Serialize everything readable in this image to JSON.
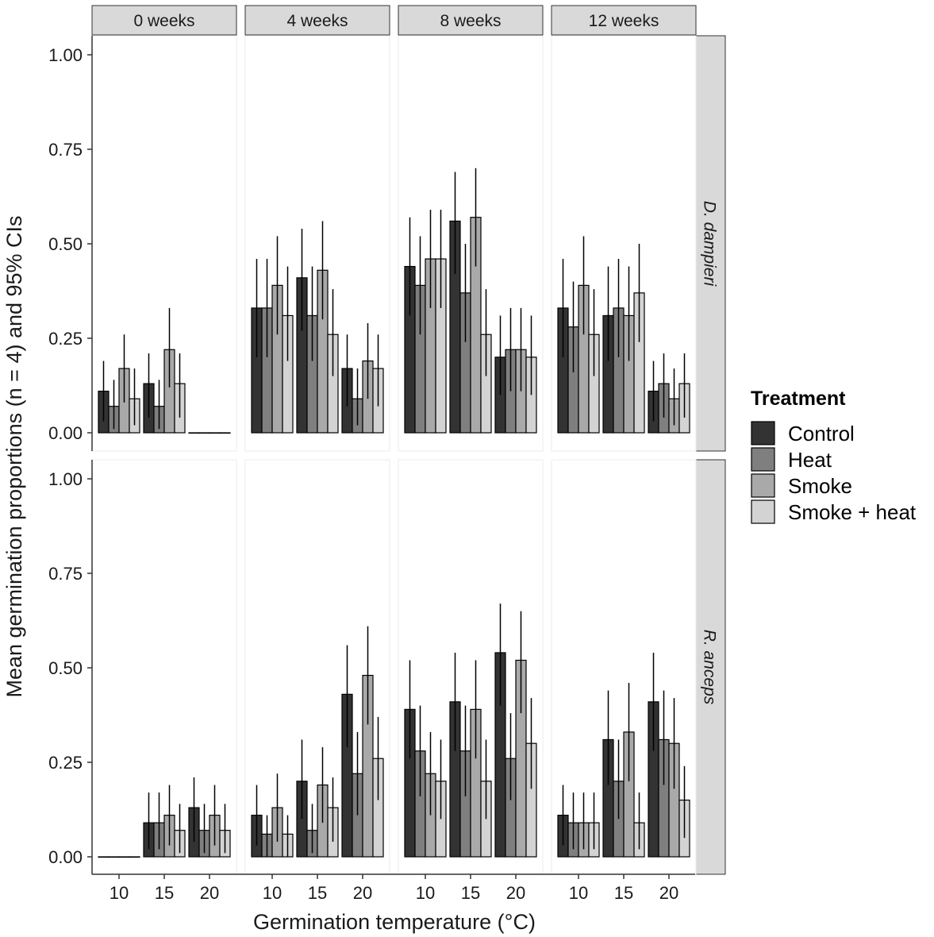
{
  "chart_data": {
    "type": "bar",
    "facet_columns": [
      "0 weeks",
      "4 weeks",
      "8 weeks",
      "12 weeks"
    ],
    "facet_rows": [
      "D. dampieri",
      "R. anceps"
    ],
    "x_categories": [
      "10",
      "15",
      "20"
    ],
    "xlabel": "Germination temperature (°C)",
    "ylabel": "Mean germination proportions (n = 4) and 95% CIs",
    "ylim": [
      0,
      1
    ],
    "y_ticks": [
      "0.00",
      "0.25",
      "0.50",
      "0.75",
      "1.00"
    ],
    "grid": false,
    "legend": {
      "title": "Treatment",
      "placement": "right",
      "entries": [
        {
          "name": "Control",
          "color": "#333333"
        },
        {
          "name": "Heat",
          "color": "#7f7f7f"
        },
        {
          "name": "Smoke",
          "color": "#a9a9a9"
        },
        {
          "name": "Smoke + heat",
          "color": "#d3d3d3"
        }
      ]
    },
    "panels": [
      {
        "row": "D. dampieri",
        "column": "0 weeks",
        "values": [
          [
            0.11,
            0.07,
            0.17,
            0.09
          ],
          [
            0.13,
            0.07,
            0.22,
            0.13
          ],
          [
            0,
            0,
            0,
            0
          ]
        ],
        "ci_low": [
          [
            0.03,
            0.01,
            0.08,
            0.02
          ],
          [
            0.04,
            0.01,
            0.12,
            0.04
          ],
          [
            0,
            0,
            0,
            0
          ]
        ],
        "ci_high": [
          [
            0.19,
            0.14,
            0.26,
            0.17
          ],
          [
            0.21,
            0.14,
            0.33,
            0.21
          ],
          [
            0,
            0,
            0,
            0
          ]
        ]
      },
      {
        "row": "D. dampieri",
        "column": "4 weeks",
        "values": [
          [
            0.33,
            0.33,
            0.39,
            0.31
          ],
          [
            0.41,
            0.31,
            0.43,
            0.26
          ],
          [
            0.17,
            0.09,
            0.19,
            0.17
          ]
        ],
        "ci_low": [
          [
            0.2,
            0.2,
            0.26,
            0.19
          ],
          [
            0.27,
            0.19,
            0.3,
            0.15
          ],
          [
            0.07,
            0.02,
            0.09,
            0.07
          ]
        ],
        "ci_high": [
          [
            0.46,
            0.46,
            0.52,
            0.44
          ],
          [
            0.54,
            0.44,
            0.56,
            0.38
          ],
          [
            0.26,
            0.17,
            0.29,
            0.26
          ]
        ]
      },
      {
        "row": "D. dampieri",
        "column": "8 weeks",
        "values": [
          [
            0.44,
            0.39,
            0.46,
            0.46
          ],
          [
            0.56,
            0.37,
            0.57,
            0.26
          ],
          [
            0.2,
            0.22,
            0.22,
            0.2
          ]
        ],
        "ci_low": [
          [
            0.31,
            0.26,
            0.33,
            0.33
          ],
          [
            0.42,
            0.24,
            0.44,
            0.15
          ],
          [
            0.1,
            0.11,
            0.11,
            0.1
          ]
        ],
        "ci_high": [
          [
            0.57,
            0.52,
            0.59,
            0.59
          ],
          [
            0.69,
            0.5,
            0.7,
            0.38
          ],
          [
            0.31,
            0.33,
            0.33,
            0.31
          ]
        ]
      },
      {
        "row": "D. dampieri",
        "column": "12 weeks",
        "values": [
          [
            0.33,
            0.28,
            0.39,
            0.26
          ],
          [
            0.31,
            0.33,
            0.31,
            0.37
          ],
          [
            0.11,
            0.13,
            0.09,
            0.13
          ]
        ],
        "ci_low": [
          [
            0.2,
            0.16,
            0.26,
            0.15
          ],
          [
            0.19,
            0.2,
            0.19,
            0.24
          ],
          [
            0.03,
            0.04,
            0.02,
            0.04
          ]
        ],
        "ci_high": [
          [
            0.46,
            0.4,
            0.52,
            0.38
          ],
          [
            0.44,
            0.46,
            0.44,
            0.5
          ],
          [
            0.19,
            0.21,
            0.17,
            0.21
          ]
        ]
      },
      {
        "row": "R. anceps",
        "column": "0 weeks",
        "values": [
          [
            0,
            0,
            0,
            0
          ],
          [
            0.09,
            0.09,
            0.11,
            0.07
          ],
          [
            0.13,
            0.07,
            0.11,
            0.07
          ]
        ],
        "ci_low": [
          [
            0,
            0,
            0,
            0
          ],
          [
            0.02,
            0.02,
            0.03,
            0.01
          ],
          [
            0.04,
            0.01,
            0.03,
            0.01
          ]
        ],
        "ci_high": [
          [
            0,
            0,
            0,
            0
          ],
          [
            0.17,
            0.17,
            0.19,
            0.14
          ],
          [
            0.21,
            0.14,
            0.19,
            0.14
          ]
        ]
      },
      {
        "row": "R. anceps",
        "column": "4 weeks",
        "values": [
          [
            0.11,
            0.06,
            0.13,
            0.06
          ],
          [
            0.2,
            0.07,
            0.19,
            0.13
          ],
          [
            0.43,
            0.22,
            0.48,
            0.26
          ]
        ],
        "ci_low": [
          [
            0.03,
            0.0,
            0.04,
            0.0
          ],
          [
            0.1,
            0.01,
            0.09,
            0.04
          ],
          [
            0.29,
            0.11,
            0.35,
            0.15
          ]
        ],
        "ci_high": [
          [
            0.19,
            0.11,
            0.22,
            0.11
          ],
          [
            0.31,
            0.14,
            0.29,
            0.21
          ],
          [
            0.56,
            0.33,
            0.61,
            0.37
          ]
        ]
      },
      {
        "row": "R. anceps",
        "column": "8 weeks",
        "values": [
          [
            0.39,
            0.28,
            0.22,
            0.2
          ],
          [
            0.41,
            0.28,
            0.39,
            0.2
          ],
          [
            0.54,
            0.26,
            0.52,
            0.3
          ]
        ],
        "ci_low": [
          [
            0.26,
            0.16,
            0.11,
            0.1
          ],
          [
            0.28,
            0.16,
            0.26,
            0.1
          ],
          [
            0.4,
            0.15,
            0.38,
            0.18
          ]
        ],
        "ci_high": [
          [
            0.52,
            0.4,
            0.33,
            0.31
          ],
          [
            0.54,
            0.4,
            0.52,
            0.31
          ],
          [
            0.67,
            0.38,
            0.65,
            0.42
          ]
        ]
      },
      {
        "row": "R. anceps",
        "column": "12 weeks",
        "values": [
          [
            0.11,
            0.09,
            0.09,
            0.09
          ],
          [
            0.31,
            0.2,
            0.33,
            0.09
          ],
          [
            0.41,
            0.31,
            0.3,
            0.15
          ]
        ],
        "ci_low": [
          [
            0.03,
            0.02,
            0.02,
            0.02
          ],
          [
            0.19,
            0.1,
            0.2,
            0.02
          ],
          [
            0.28,
            0.19,
            0.18,
            0.05
          ]
        ],
        "ci_high": [
          [
            0.19,
            0.17,
            0.17,
            0.17
          ],
          [
            0.44,
            0.31,
            0.46,
            0.17
          ],
          [
            0.54,
            0.44,
            0.42,
            0.24
          ]
        ]
      }
    ]
  }
}
